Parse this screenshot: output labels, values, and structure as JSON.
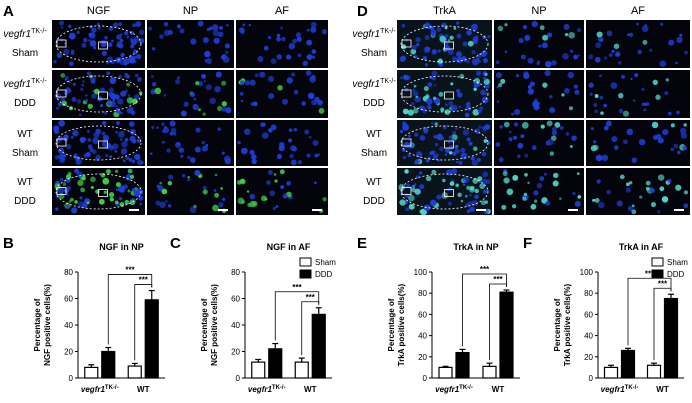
{
  "image_panels": [
    {
      "label": "A",
      "columns": [
        "NGF",
        "NP",
        "AF"
      ],
      "rows": [
        {
          "line1": "vegfr1",
          "sup": "TK-/-",
          "line2": "Sham"
        },
        {
          "line1": "vegfr1",
          "sup": "TK-/-",
          "line2": "DDD"
        },
        {
          "line1": "WT",
          "line2": "Sham"
        },
        {
          "line1": "WT",
          "line2": "DDD"
        }
      ]
    },
    {
      "label": "D",
      "columns": [
        "TrkA",
        "NP",
        "AF"
      ],
      "rows": [
        {
          "line1": "vegfr1",
          "sup": "TK-/-",
          "line2": "Sham"
        },
        {
          "line1": "vegfr1",
          "sup": "TK-/-",
          "line2": "DDD"
        },
        {
          "line1": "WT",
          "line2": "Sham"
        },
        {
          "line1": "WT",
          "line2": "DDD"
        }
      ]
    }
  ],
  "chart_data": [
    {
      "type": "bar",
      "panel": "B",
      "title": "NGF in NP",
      "ylabel": [
        "Percentage of",
        "NGF positive cells(%)"
      ],
      "categories": [
        "vegfr1",
        "WT"
      ],
      "category_superscripts": [
        "TK-/-",
        null
      ],
      "series": [
        {
          "color": "#ffffff",
          "values": [
            8,
            9
          ],
          "errors": [
            2,
            2
          ]
        },
        {
          "color": "#000000",
          "values": [
            20,
            59
          ],
          "errors": [
            3,
            7
          ]
        }
      ],
      "ylim": [
        0,
        80
      ],
      "yticks": [
        0,
        20,
        40,
        60,
        80
      ],
      "significance": [
        "***",
        "***"
      ]
    },
    {
      "type": "bar",
      "panel": "C",
      "title": "NGF in AF",
      "ylabel": [
        "Percentage of",
        "NGF positive cells(%)"
      ],
      "categories": [
        "vegfr1",
        "WT"
      ],
      "category_superscripts": [
        "TK-/-",
        null
      ],
      "series": [
        {
          "name": "Sham",
          "color": "#ffffff",
          "values": [
            12,
            12
          ],
          "errors": [
            2,
            3
          ]
        },
        {
          "name": "DDD",
          "color": "#000000",
          "values": [
            22,
            48
          ],
          "errors": [
            4,
            5
          ]
        }
      ],
      "ylim": [
        0,
        80
      ],
      "yticks": [
        0,
        20,
        40,
        60,
        80
      ],
      "legend": "upper right",
      "significance": [
        "***",
        "***"
      ]
    },
    {
      "type": "bar",
      "panel": "E",
      "title": "TrkA in NP",
      "ylabel": [
        "Percentage of",
        "TrkA positive cells(%)"
      ],
      "categories": [
        "vegfr1",
        "WT"
      ],
      "category_superscripts": [
        "TK-/-",
        null
      ],
      "series": [
        {
          "color": "#ffffff",
          "values": [
            10,
            11
          ],
          "errors": [
            1,
            3
          ]
        },
        {
          "color": "#000000",
          "values": [
            24,
            81
          ],
          "errors": [
            3,
            2
          ]
        }
      ],
      "ylim": [
        0,
        100
      ],
      "yticks": [
        0,
        20,
        40,
        60,
        80,
        100
      ],
      "significance": [
        "***",
        "***"
      ]
    },
    {
      "type": "bar",
      "panel": "F",
      "title": "TrkA in AF",
      "ylabel": [
        "Percentage of",
        "TrkA positive cells(%)"
      ],
      "categories": [
        "vegfr1",
        "WT"
      ],
      "category_superscripts": [
        "TK-/-",
        null
      ],
      "series": [
        {
          "name": "Sham",
          "color": "#ffffff",
          "values": [
            10,
            12
          ],
          "errors": [
            2,
            2
          ]
        },
        {
          "name": "DDD",
          "color": "#000000",
          "values": [
            26,
            75
          ],
          "errors": [
            2,
            4
          ]
        }
      ],
      "ylim": [
        0,
        100
      ],
      "yticks": [
        0,
        20,
        40,
        60,
        80,
        100
      ],
      "legend": "upper right",
      "significance": [
        "***",
        "***"
      ]
    }
  ]
}
